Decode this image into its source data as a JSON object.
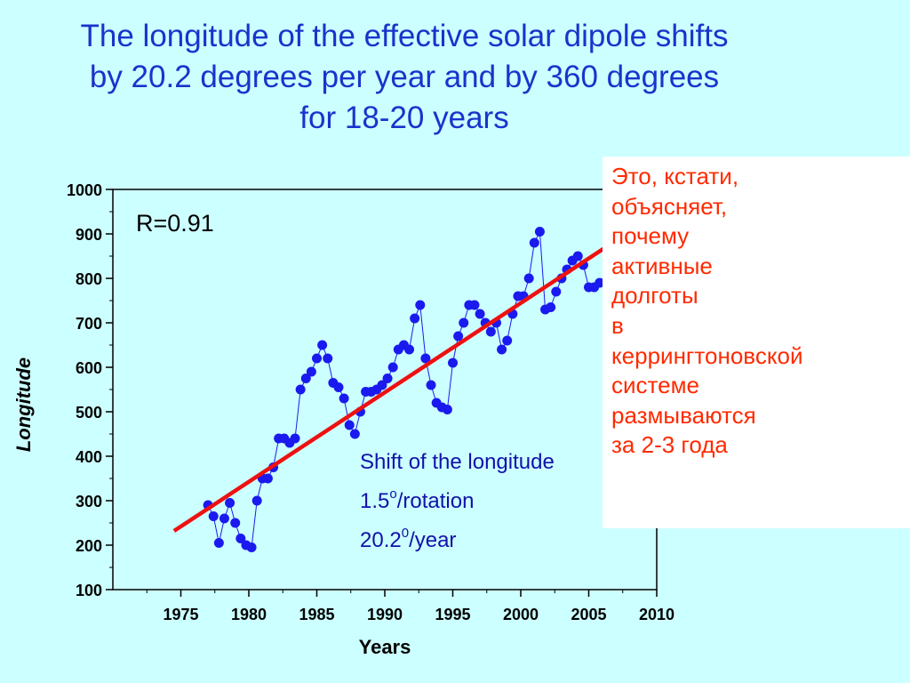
{
  "title": {
    "line1": "The longitude of the effective solar dipole shifts",
    "line2": "by 20.2 degrees per year and by 360 degrees",
    "line3": "for 18-20 years"
  },
  "note": {
    "lines": [
      "Это, кстати,",
      "объясняет,",
      "почему",
      "активные",
      "долготы",
      "в",
      "керрингтоновской",
      "системе",
      "размываются",
      "за 2-3 года"
    ]
  },
  "colors": {
    "background": "#ccffff",
    "title": "#1a33cc",
    "series": "#1a1aee",
    "trend": "#ee1111",
    "note_text": "#ff2a00"
  },
  "chart_data": {
    "type": "scatter",
    "title": "",
    "xlabel": "Years",
    "ylabel": "Longitude",
    "xlim": [
      1970,
      2010
    ],
    "ylim": [
      100,
      1000
    ],
    "xticks": [
      1975,
      1980,
      1985,
      1990,
      1995,
      2000,
      2005,
      2010
    ],
    "yticks": [
      100,
      200,
      300,
      400,
      500,
      600,
      700,
      800,
      900,
      1000
    ],
    "annotations": {
      "r_value": "R=0.91",
      "shift_label": "Shift of the longitude",
      "per_rotation_value": "1.5",
      "per_rotation_sup": "o",
      "per_rotation_unit": "/rotation",
      "per_year_value": "20.2",
      "per_year_sup": "0",
      "per_year_unit": "/year"
    },
    "trend_line": {
      "x": [
        1974.5,
        2006.5
      ],
      "y": [
        232,
        875
      ]
    },
    "series": [
      {
        "type": "scatter-line",
        "x": [
          1977.0,
          1977.4,
          1977.8,
          1978.2,
          1978.6,
          1979.0,
          1979.4,
          1979.8,
          1980.2,
          1980.6,
          1981.0,
          1981.4,
          1981.8,
          1982.2,
          1982.6,
          1983.0,
          1983.4,
          1983.8,
          1984.2,
          1984.6,
          1985.0,
          1985.4,
          1985.8,
          1986.2,
          1986.6,
          1987.0,
          1987.4,
          1987.8,
          1988.2,
          1988.6,
          1989.0,
          1989.4,
          1989.8,
          1990.2,
          1990.6,
          1991.0,
          1991.4,
          1991.8,
          1992.2,
          1992.6,
          1993.0,
          1993.4,
          1993.8,
          1994.2,
          1994.6,
          1995.0,
          1995.4,
          1995.8,
          1996.2,
          1996.6,
          1997.0,
          1997.4,
          1997.8,
          1998.2,
          1998.6,
          1999.0,
          1999.4,
          1999.8,
          2000.2,
          2000.6,
          2001.0,
          2001.4,
          2001.8,
          2002.2,
          2002.6,
          2003.0,
          2003.4,
          2003.8,
          2004.2,
          2004.6,
          2005.0,
          2005.4,
          2005.8
        ],
        "y": [
          290,
          265,
          205,
          260,
          295,
          250,
          215,
          200,
          195,
          300,
          350,
          350,
          375,
          440,
          440,
          430,
          440,
          550,
          575,
          590,
          620,
          650,
          620,
          565,
          555,
          530,
          470,
          450,
          500,
          545,
          545,
          550,
          560,
          575,
          600,
          640,
          650,
          640,
          710,
          740,
          620,
          560,
          520,
          510,
          505,
          610,
          670,
          700,
          740,
          740,
          720,
          700,
          680,
          700,
          640,
          660,
          720,
          760,
          760,
          800,
          880,
          905,
          730,
          735,
          770,
          800,
          820,
          840,
          850,
          830,
          780,
          780,
          790
        ]
      }
    ]
  }
}
